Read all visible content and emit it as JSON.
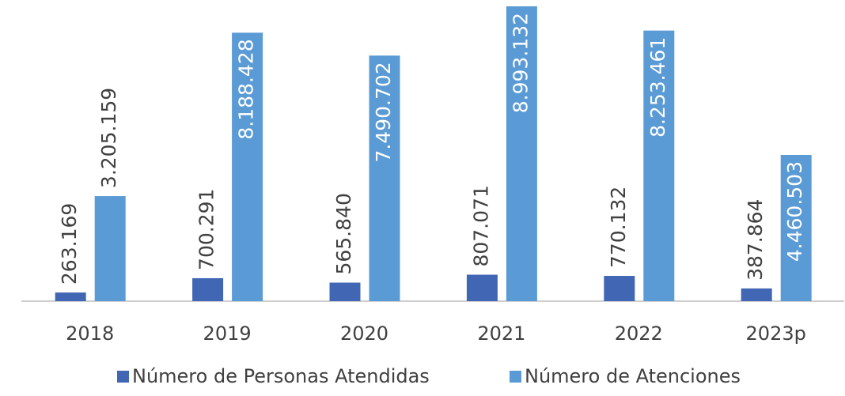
{
  "chart_data": {
    "type": "bar",
    "categories": [
      "2018",
      "2019",
      "2020",
      "2021",
      "2022",
      "2023p"
    ],
    "series": [
      {
        "name": "Número de Personas Atendidas",
        "color": "#4066b4",
        "values": [
          263169,
          700291,
          565840,
          807071,
          770132,
          387864
        ],
        "value_labels": [
          "263.169",
          "700.291",
          "565.840",
          "807.071",
          "770.132",
          "387.864"
        ]
      },
      {
        "name": "Número de Atenciones",
        "color": "#5b9bd5",
        "values": [
          3205159,
          8188428,
          7490702,
          8993132,
          8253461,
          4460503
        ],
        "value_labels": [
          "3.205.159",
          "8.188.428",
          "7.490.702",
          "8.993.132",
          "8.253.461",
          "4.460.503"
        ]
      }
    ]
  }
}
